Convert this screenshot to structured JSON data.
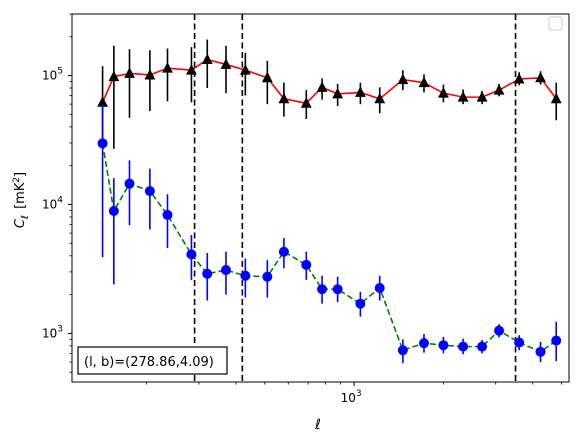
{
  "chart_data": {
    "type": "scatter",
    "title": "",
    "xlabel": "ℓ",
    "ylabel_main": "C",
    "ylabel_sub": "ℓ",
    "ylabel_units": "[mK",
    "ylabel_units_sup": "2",
    "ylabel_units_close": "]",
    "x_scale": "log",
    "y_scale": "log",
    "xlim": [
      112,
      5300
    ],
    "ylim": [
      420,
      300000
    ],
    "x_ticks": [
      {
        "value": 1000,
        "base": "10",
        "exp": "3"
      }
    ],
    "y_ticks": [
      {
        "value": 1000,
        "base": "10",
        "exp": "3"
      },
      {
        "value": 10000,
        "base": "10",
        "exp": "4"
      },
      {
        "value": 100000,
        "base": "10",
        "exp": "5"
      }
    ],
    "grid": false,
    "legend": "top-right, empty",
    "vlines": [
      290,
      420,
      3500
    ],
    "annotation": "(l, b)=(278.86,4.09)",
    "series": [
      {
        "line_color": "#ff0000",
        "marker_color": "#000000",
        "marker": "triangle",
        "linestyle": "solid",
        "points": [
          {
            "x": 142,
            "y": 62000,
            "lo": 32000,
            "hi": 118000
          },
          {
            "x": 155,
            "y": 98000,
            "lo": 27000,
            "hi": 170000
          },
          {
            "x": 175,
            "y": 104000,
            "lo": 47000,
            "hi": 160000
          },
          {
            "x": 205,
            "y": 101000,
            "lo": 53000,
            "hi": 157000
          },
          {
            "x": 235,
            "y": 114000,
            "lo": 63000,
            "hi": 162000
          },
          {
            "x": 283,
            "y": 110000,
            "lo": 62000,
            "hi": 166000
          },
          {
            "x": 320,
            "y": 133000,
            "lo": 80000,
            "hi": 190000
          },
          {
            "x": 370,
            "y": 122000,
            "lo": 73000,
            "hi": 170000
          },
          {
            "x": 430,
            "y": 110000,
            "lo": 70000,
            "hi": 150000
          },
          {
            "x": 510,
            "y": 96000,
            "lo": 60000,
            "hi": 130000
          },
          {
            "x": 580,
            "y": 66000,
            "lo": 48000,
            "hi": 88000
          },
          {
            "x": 690,
            "y": 61000,
            "lo": 46000,
            "hi": 77000
          },
          {
            "x": 780,
            "y": 81000,
            "lo": 65000,
            "hi": 95000
          },
          {
            "x": 880,
            "y": 72000,
            "lo": 58000,
            "hi": 86000
          },
          {
            "x": 1050,
            "y": 74000,
            "lo": 60000,
            "hi": 88000
          },
          {
            "x": 1220,
            "y": 66000,
            "lo": 51000,
            "hi": 81000
          },
          {
            "x": 1460,
            "y": 93000,
            "lo": 77000,
            "hi": 110000
          },
          {
            "x": 1720,
            "y": 88000,
            "lo": 74000,
            "hi": 102000
          },
          {
            "x": 2000,
            "y": 73000,
            "lo": 62000,
            "hi": 85000
          },
          {
            "x": 2330,
            "y": 68000,
            "lo": 60000,
            "hi": 78000
          },
          {
            "x": 2700,
            "y": 68000,
            "lo": 60000,
            "hi": 76000
          },
          {
            "x": 3080,
            "y": 77000,
            "lo": 69000,
            "hi": 86000
          },
          {
            "x": 3600,
            "y": 94000,
            "lo": 84000,
            "hi": 106000
          },
          {
            "x": 4250,
            "y": 96000,
            "lo": 85000,
            "hi": 108000
          },
          {
            "x": 4800,
            "y": 66000,
            "lo": 45000,
            "hi": 88000
          }
        ]
      },
      {
        "line_color": "#008000",
        "marker_color": "#0000ff",
        "marker": "circle",
        "linestyle": "dashed",
        "points": [
          {
            "x": 142,
            "y": 29800,
            "lo": 3900,
            "hi": 60000
          },
          {
            "x": 155,
            "y": 8900,
            "lo": 2400,
            "hi": 16000
          },
          {
            "x": 175,
            "y": 14500,
            "lo": 6900,
            "hi": 22000
          },
          {
            "x": 205,
            "y": 12700,
            "lo": 6400,
            "hi": 19000
          },
          {
            "x": 235,
            "y": 8300,
            "lo": 4600,
            "hi": 12000
          },
          {
            "x": 283,
            "y": 4100,
            "lo": 2600,
            "hi": 5800
          },
          {
            "x": 320,
            "y": 2900,
            "lo": 1800,
            "hi": 4200
          },
          {
            "x": 370,
            "y": 3100,
            "lo": 2000,
            "hi": 4300
          },
          {
            "x": 430,
            "y": 2800,
            "lo": 1900,
            "hi": 3800
          },
          {
            "x": 510,
            "y": 2750,
            "lo": 1900,
            "hi": 3700
          },
          {
            "x": 580,
            "y": 4300,
            "lo": 3200,
            "hi": 5500
          },
          {
            "x": 690,
            "y": 3400,
            "lo": 2600,
            "hi": 4300
          },
          {
            "x": 780,
            "y": 2200,
            "lo": 1700,
            "hi": 2800
          },
          {
            "x": 880,
            "y": 2200,
            "lo": 1750,
            "hi": 2750
          },
          {
            "x": 1050,
            "y": 1700,
            "lo": 1350,
            "hi": 2100
          },
          {
            "x": 1220,
            "y": 2250,
            "lo": 1800,
            "hi": 2800
          },
          {
            "x": 1460,
            "y": 740,
            "lo": 590,
            "hi": 900
          },
          {
            "x": 1720,
            "y": 840,
            "lo": 710,
            "hi": 990
          },
          {
            "x": 2000,
            "y": 810,
            "lo": 700,
            "hi": 940
          },
          {
            "x": 2330,
            "y": 790,
            "lo": 690,
            "hi": 910
          },
          {
            "x": 2700,
            "y": 790,
            "lo": 700,
            "hi": 890
          },
          {
            "x": 3080,
            "y": 1050,
            "lo": 930,
            "hi": 1180
          },
          {
            "x": 3600,
            "y": 850,
            "lo": 740,
            "hi": 970
          },
          {
            "x": 4250,
            "y": 720,
            "lo": 600,
            "hi": 860
          },
          {
            "x": 4800,
            "y": 880,
            "lo": 610,
            "hi": 1230
          }
        ]
      }
    ]
  }
}
